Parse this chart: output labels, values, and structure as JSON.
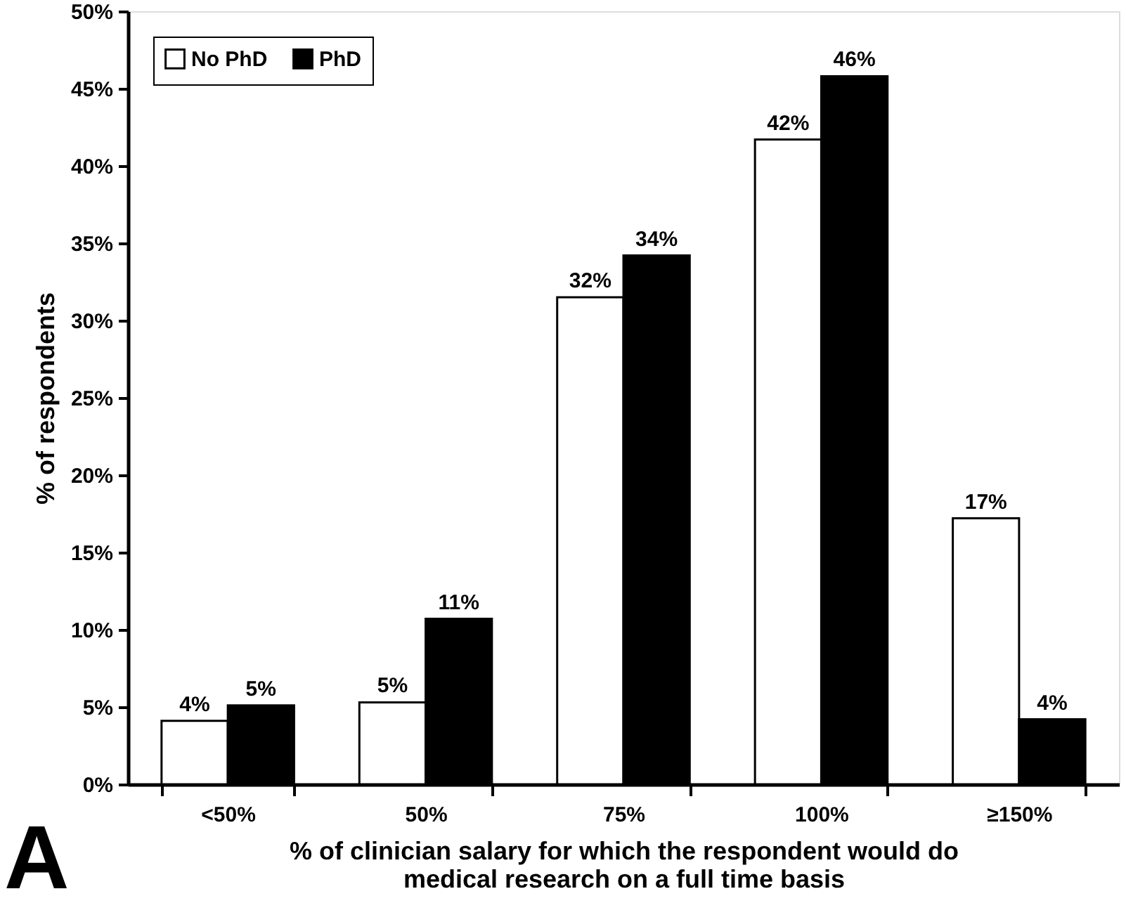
{
  "chart_data": {
    "type": "bar",
    "categories": [
      "<50%",
      "50%",
      "75%",
      "100%",
      "≥150%"
    ],
    "series": [
      {
        "name": "No PhD",
        "color": "#ffffff",
        "values": [
          4.1,
          5.3,
          31.5,
          41.7,
          17.2
        ],
        "value_labels": [
          "4%",
          "5%",
          "32%",
          "42%",
          "17%"
        ]
      },
      {
        "name": "PhD",
        "color": "#000000",
        "values": [
          5.1,
          10.7,
          34.2,
          45.8,
          4.2
        ],
        "value_labels": [
          "5%",
          "11%",
          "34%",
          "46%",
          "4%"
        ]
      }
    ],
    "xlabel": "% of clinician salary for which the respondent would do medical research on a full time basis",
    "ylabel": "% of respondents",
    "ylim": [
      0,
      50
    ],
    "yticks": [
      {
        "value": 0,
        "label": "0%"
      },
      {
        "value": 5,
        "label": "5%"
      },
      {
        "value": 10,
        "label": "10%"
      },
      {
        "value": 15,
        "label": "15%"
      },
      {
        "value": 20,
        "label": "20%"
      },
      {
        "value": 25,
        "label": "25%"
      },
      {
        "value": 30,
        "label": "30%"
      },
      {
        "value": 35,
        "label": "35%"
      },
      {
        "value": 40,
        "label": "40%"
      },
      {
        "value": 45,
        "label": "45%"
      },
      {
        "value": 50,
        "label": "50%"
      }
    ],
    "grid": false,
    "legend": "top left",
    "annotations": [
      "A"
    ]
  }
}
